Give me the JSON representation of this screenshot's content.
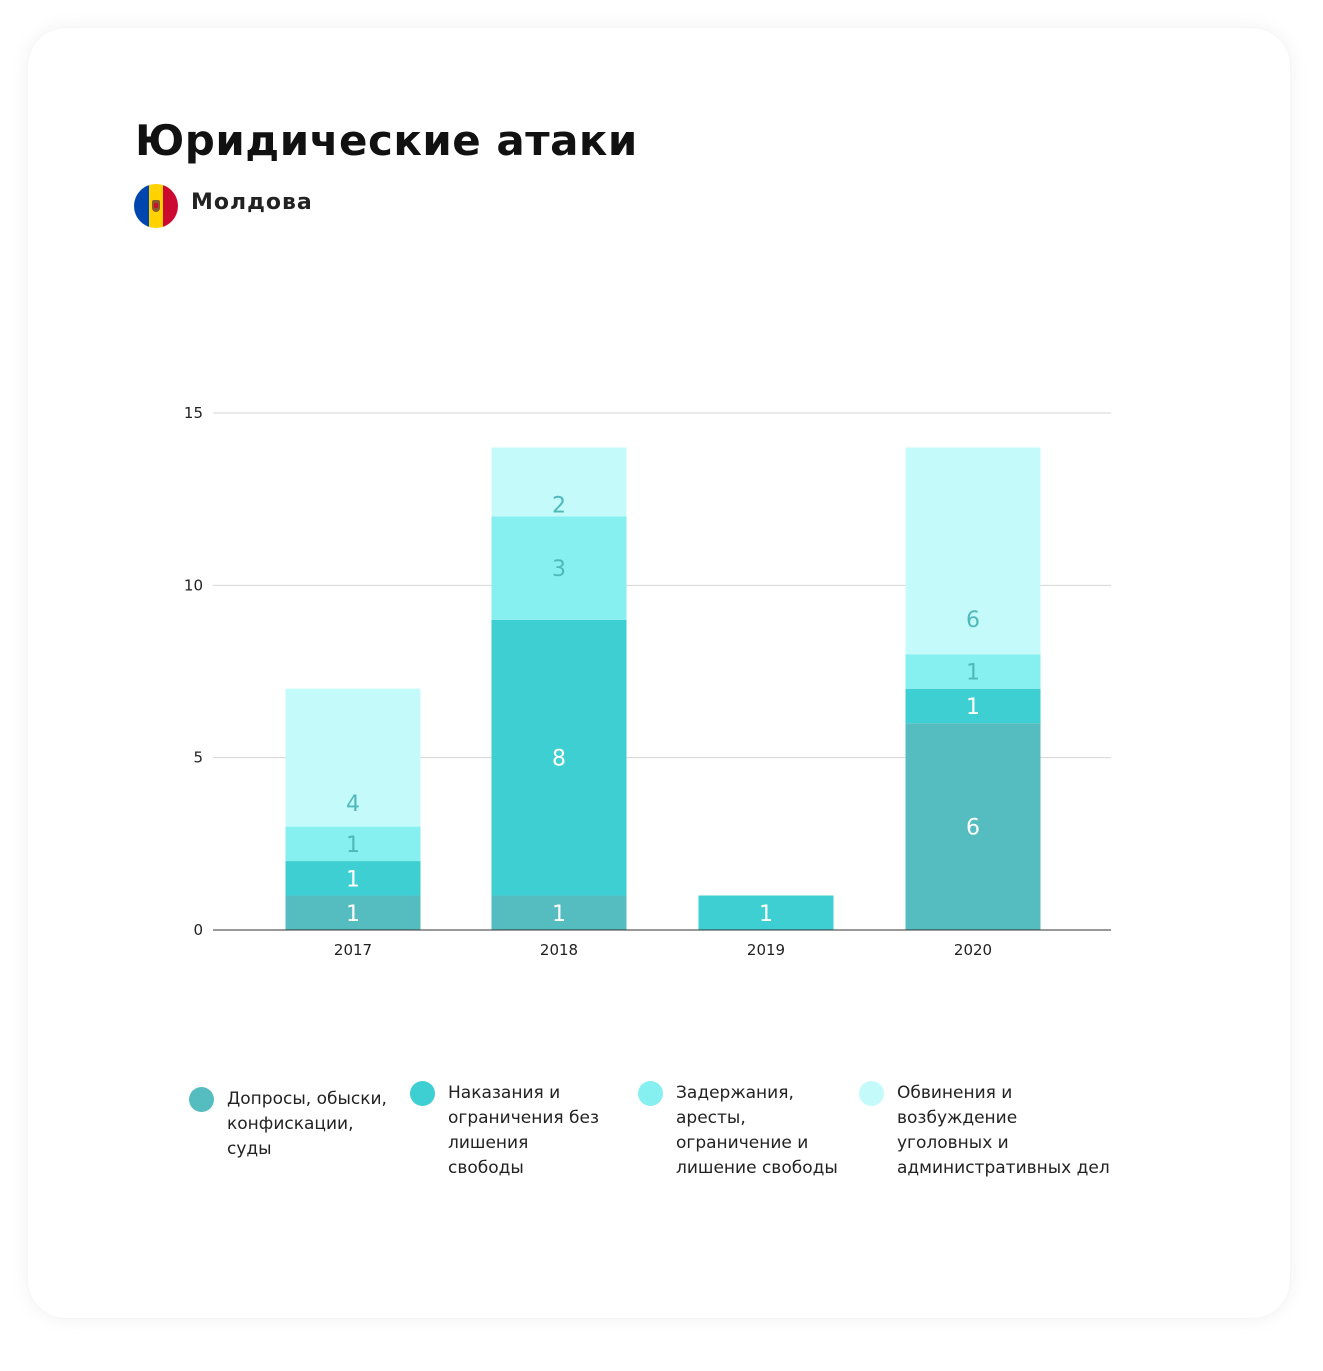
{
  "header": {
    "title": "Юридические атаки",
    "country": "Молдова"
  },
  "colors": {
    "series": [
      "#55bcbf",
      "#3ecfd3",
      "#86eff0",
      "#c4fbfa"
    ],
    "label_dark": "#ffffff",
    "label_light": "#4fb8bb",
    "flag": [
      "#0046ae",
      "#ffd200",
      "#cc092f"
    ]
  },
  "chart_data": {
    "type": "bar",
    "stacked": true,
    "categories": [
      "2017",
      "2018",
      "2019",
      "2020"
    ],
    "series": [
      {
        "name": "Допросы, обыски, конфискации, суды",
        "values": [
          1,
          1,
          0,
          6
        ]
      },
      {
        "name": "Наказания и ограничения без лишения свободы",
        "values": [
          1,
          8,
          1,
          1
        ]
      },
      {
        "name": "Задержания, аресты, ограничение и лишение свободы",
        "values": [
          1,
          3,
          0,
          1
        ]
      },
      {
        "name": "Обвинения и возбуждение уголовных и административных дел",
        "values": [
          4,
          2,
          0,
          6
        ]
      }
    ],
    "ylim": [
      0,
      15
    ],
    "yticks": [
      "0",
      "5",
      "10",
      "15"
    ],
    "grid": true,
    "legend_position": "bottom"
  },
  "legend": [
    {
      "label": "Допросы, обыски, конфискации, суды"
    },
    {
      "label": "Наказания и ограничения без лишения свободы"
    },
    {
      "label": "Задержания, аресты, ограничение и лишение свободы"
    },
    {
      "label": "Обвинения и возбуждение уголовных и административных дел"
    }
  ]
}
